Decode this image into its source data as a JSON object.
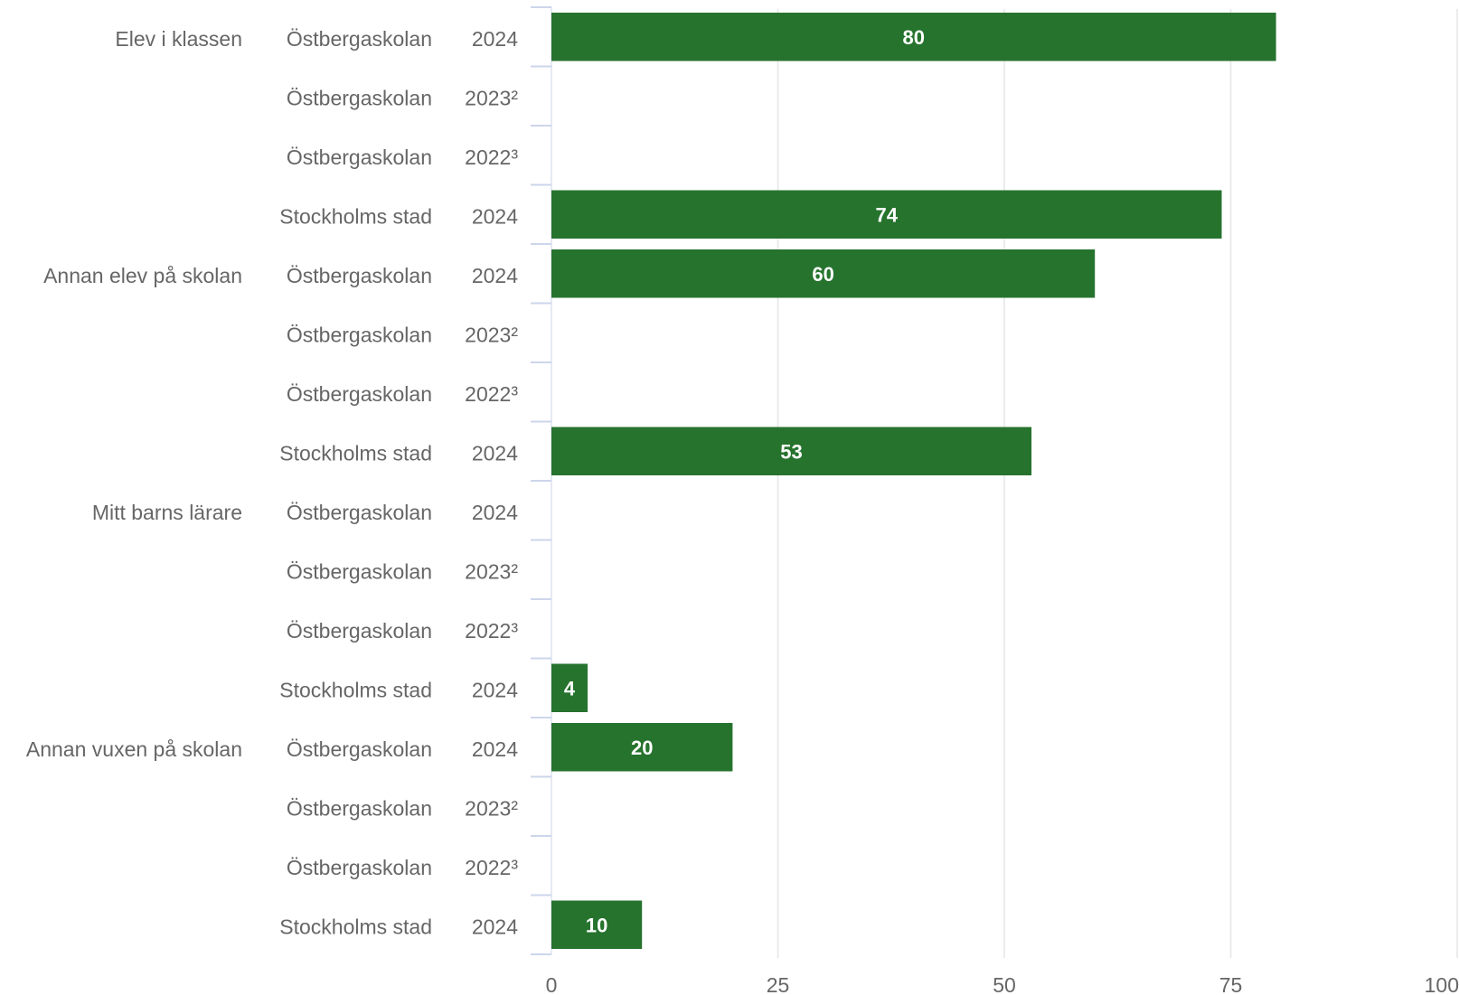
{
  "colors": {
    "bar": "#26732e",
    "grid": "#e6e6e6",
    "axis_tick": "#ccd6eb",
    "label_text": "#666666",
    "data_label": "#ffffff"
  },
  "chart_data": {
    "type": "bar",
    "orientation": "horizontal",
    "title": "",
    "xlabel": "",
    "ylabel": "",
    "xlim": [
      0,
      100
    ],
    "x_ticks": [
      "0",
      "25",
      "50",
      "75",
      "100"
    ],
    "grid": true,
    "legend": "none",
    "groups": [
      {
        "name": "Elev i klassen",
        "rows": [
          {
            "org": "Östbergaskolan",
            "year": "2024",
            "value": 80
          },
          {
            "org": "Östbergaskolan",
            "year": "2023²",
            "value": null
          },
          {
            "org": "Östbergaskolan",
            "year": "2022³",
            "value": null
          },
          {
            "org": "Stockholms stad",
            "year": "2024",
            "value": 74
          }
        ]
      },
      {
        "name": "Annan elev på skolan",
        "rows": [
          {
            "org": "Östbergaskolan",
            "year": "2024",
            "value": 60
          },
          {
            "org": "Östbergaskolan",
            "year": "2023²",
            "value": null
          },
          {
            "org": "Östbergaskolan",
            "year": "2022³",
            "value": null
          },
          {
            "org": "Stockholms stad",
            "year": "2024",
            "value": 53
          }
        ]
      },
      {
        "name": "Mitt barns lärare",
        "rows": [
          {
            "org": "Östbergaskolan",
            "year": "2024",
            "value": null
          },
          {
            "org": "Östbergaskolan",
            "year": "2023²",
            "value": null
          },
          {
            "org": "Östbergaskolan",
            "year": "2022³",
            "value": null
          },
          {
            "org": "Stockholms stad",
            "year": "2024",
            "value": 4
          }
        ]
      },
      {
        "name": "Annan vuxen på skolan",
        "rows": [
          {
            "org": "Östbergaskolan",
            "year": "2024",
            "value": 20
          },
          {
            "org": "Östbergaskolan",
            "year": "2023²",
            "value": null
          },
          {
            "org": "Östbergaskolan",
            "year": "2022³",
            "value": null
          },
          {
            "org": "Stockholms stad",
            "year": "2024",
            "value": 10
          }
        ]
      }
    ]
  }
}
